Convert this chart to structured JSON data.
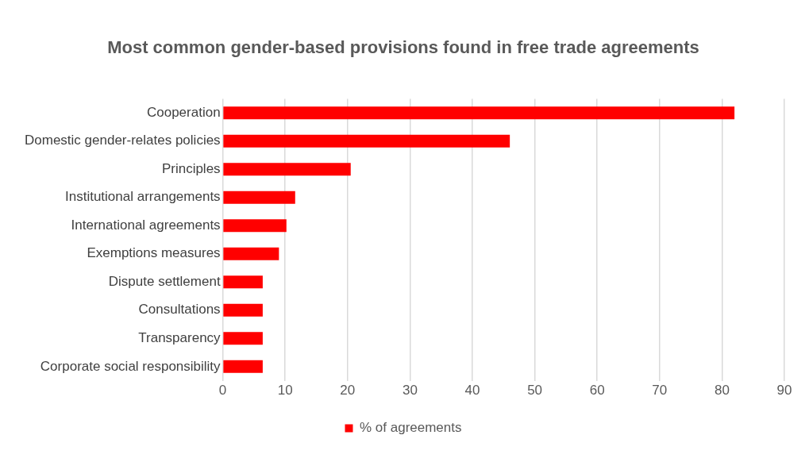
{
  "chart_data": {
    "type": "bar",
    "orientation": "horizontal",
    "title": "Most common gender-based provisions found in free trade agreements",
    "categories": [
      "Cooperation",
      "Domestic gender-relates policies",
      "Principles",
      "Institutional arrangements",
      "International agreements",
      "Exemptions measures",
      "Dispute settlement",
      "Consultations",
      "Transparency",
      "Corporate social responsibility"
    ],
    "series": [
      {
        "name": "% of agreements",
        "color": "#ff0000",
        "values": [
          82,
          46,
          20.5,
          11.6,
          10.2,
          9,
          6.4,
          6.4,
          6.4,
          6.4
        ]
      }
    ],
    "xlim": [
      0,
      90
    ],
    "xticks": [
      0,
      10,
      20,
      30,
      40,
      50,
      60,
      70,
      80,
      90
    ],
    "grid": "x",
    "legend": "bottom"
  }
}
